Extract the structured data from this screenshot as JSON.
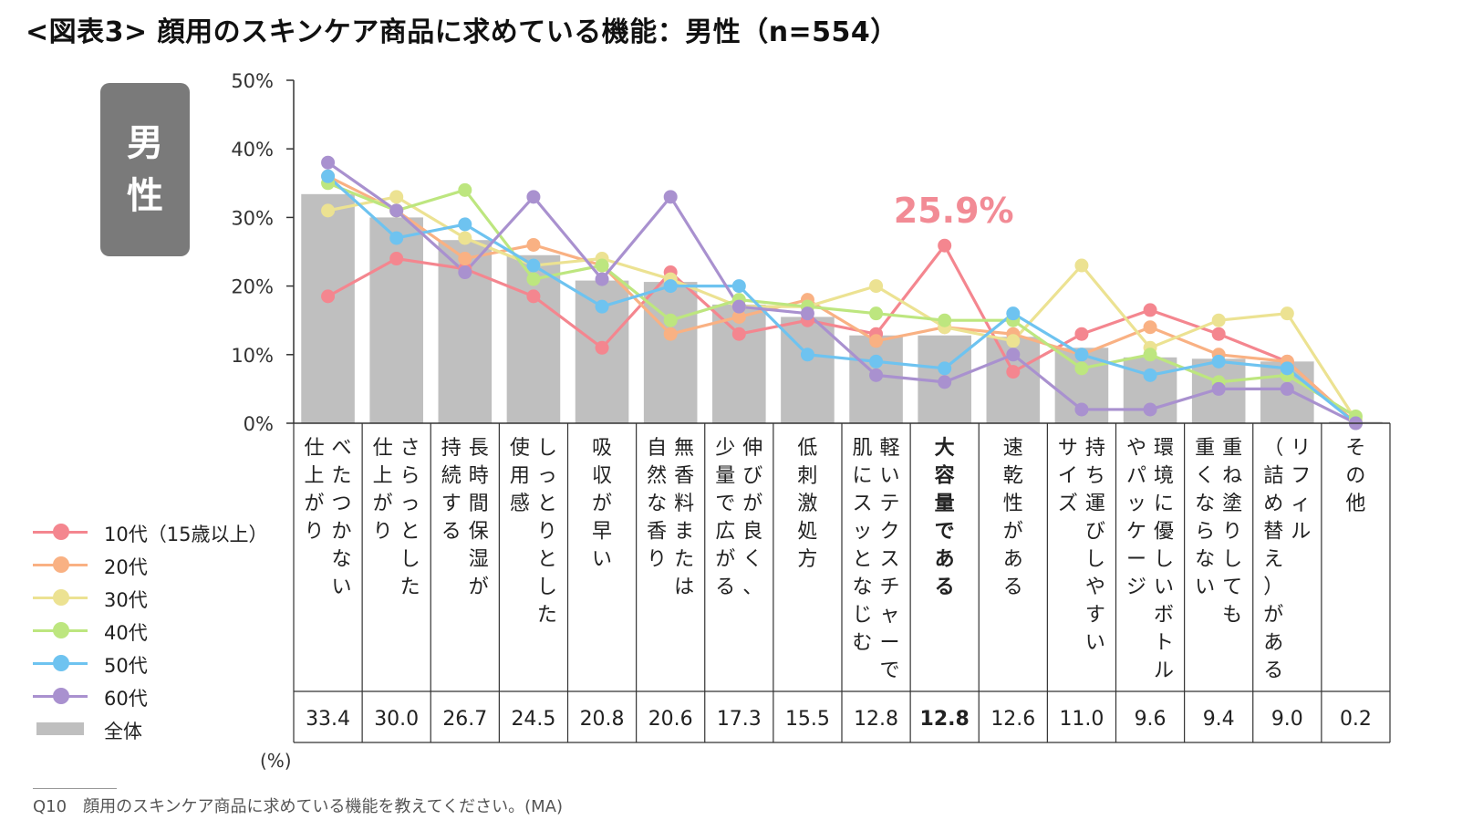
{
  "title": "<図表3> 顔用のスキンケア商品に求めている機能：男性（n=554）",
  "gender_label": [
    "男",
    "性"
  ],
  "unit_label": "(%)",
  "footnote": "Q10　顔用のスキンケア商品に求めている機能を教えてください。(MA)",
  "highlight": {
    "label": "25.9%",
    "category_index": 9,
    "color": "#f28b95"
  },
  "legend": [
    {
      "name": "10代（15歳以上）",
      "color": "#f4868f",
      "kind": "line"
    },
    {
      "name": "20代",
      "color": "#f9b183",
      "kind": "line"
    },
    {
      "name": "30代",
      "color": "#ece292",
      "kind": "line"
    },
    {
      "name": "40代",
      "color": "#bde67f",
      "kind": "line"
    },
    {
      "name": "50代",
      "color": "#6ec3f0",
      "kind": "line"
    },
    {
      "name": "60代",
      "color": "#a991cf",
      "kind": "line"
    },
    {
      "name": "全体",
      "color": "#bfbfbf",
      "kind": "bar"
    }
  ],
  "chart_data": {
    "type": "bar",
    "title": "顔用のスキンケア商品に求めている機能：男性（n=554）",
    "xlabel": "",
    "ylabel": "",
    "ylim": [
      0,
      50
    ],
    "yticks": [
      "0%",
      "10%",
      "20%",
      "30%",
      "40%",
      "50%"
    ],
    "categories": [
      [
        "べたつかない",
        "仕上がり"
      ],
      [
        "さらっとした",
        "仕上がり"
      ],
      [
        "長時間保湿が",
        "持続する"
      ],
      [
        "しっとりとした",
        "使用感"
      ],
      [
        "吸収が早い"
      ],
      [
        "無香料または",
        "自然な香り"
      ],
      [
        "伸びが良く、",
        "少量で広がる"
      ],
      [
        "低刺激処方"
      ],
      [
        "軽いテクスチャーで",
        "肌にスッとなじむ"
      ],
      [
        "大容量である"
      ],
      [
        "速乾性がある"
      ],
      [
        "持ち運びしやすい",
        "サイズ"
      ],
      [
        "環境に優しいボトル",
        "やパッケージ"
      ],
      [
        "重ね塗りしても",
        "重くならない"
      ],
      [
        "リフィル",
        "（詰め替え）がある"
      ],
      [
        "その他"
      ]
    ],
    "bold_category_index": 9,
    "bar_series": {
      "name": "全体",
      "color": "#bfbfbf",
      "values": [
        33.4,
        30.0,
        26.7,
        24.5,
        20.8,
        20.6,
        17.3,
        15.5,
        12.8,
        12.8,
        12.6,
        11.0,
        9.6,
        9.4,
        9.0,
        0.2
      ],
      "value_labels": [
        "33.4",
        "30.0",
        "26.7",
        "24.5",
        "20.8",
        "20.6",
        "17.3",
        "15.5",
        "12.8",
        "12.8",
        "12.6",
        "11.0",
        "9.6",
        "9.4",
        "9.0",
        "0.2"
      ]
    },
    "series": [
      {
        "name": "10代（15歳以上）",
        "color": "#f4868f",
        "values": [
          18.5,
          24.0,
          22.5,
          18.5,
          11.0,
          22.0,
          13.0,
          15.0,
          13.0,
          25.9,
          7.5,
          13.0,
          16.5,
          13.0,
          9.0,
          0.0
        ]
      },
      {
        "name": "20代",
        "color": "#f9b183",
        "values": [
          36.0,
          31.0,
          24.0,
          26.0,
          23.0,
          13.0,
          15.5,
          18.0,
          12.0,
          14.0,
          13.0,
          10.0,
          14.0,
          10.0,
          9.0,
          0.0
        ]
      },
      {
        "name": "30代",
        "color": "#ece292",
        "values": [
          31.0,
          33.0,
          27.0,
          23.0,
          24.0,
          21.0,
          17.0,
          17.0,
          20.0,
          14.0,
          12.0,
          23.0,
          11.0,
          15.0,
          16.0,
          0.5
        ]
      },
      {
        "name": "40代",
        "color": "#bde67f",
        "values": [
          35.0,
          31.0,
          34.0,
          21.0,
          23.0,
          15.0,
          18.0,
          17.0,
          16.0,
          15.0,
          15.0,
          8.0,
          10.0,
          6.0,
          7.0,
          1.0
        ]
      },
      {
        "name": "50代",
        "color": "#6ec3f0",
        "values": [
          36.0,
          27.0,
          29.0,
          23.0,
          17.0,
          20.0,
          20.0,
          10.0,
          9.0,
          8.0,
          16.0,
          10.0,
          7.0,
          9.0,
          8.0,
          0.0
        ]
      },
      {
        "name": "60代",
        "color": "#a991cf",
        "values": [
          38.0,
          31.0,
          22.0,
          33.0,
          21.0,
          33.0,
          17.0,
          16.0,
          7.0,
          6.0,
          10.0,
          2.0,
          2.0,
          5.0,
          5.0,
          0.0
        ]
      }
    ]
  }
}
